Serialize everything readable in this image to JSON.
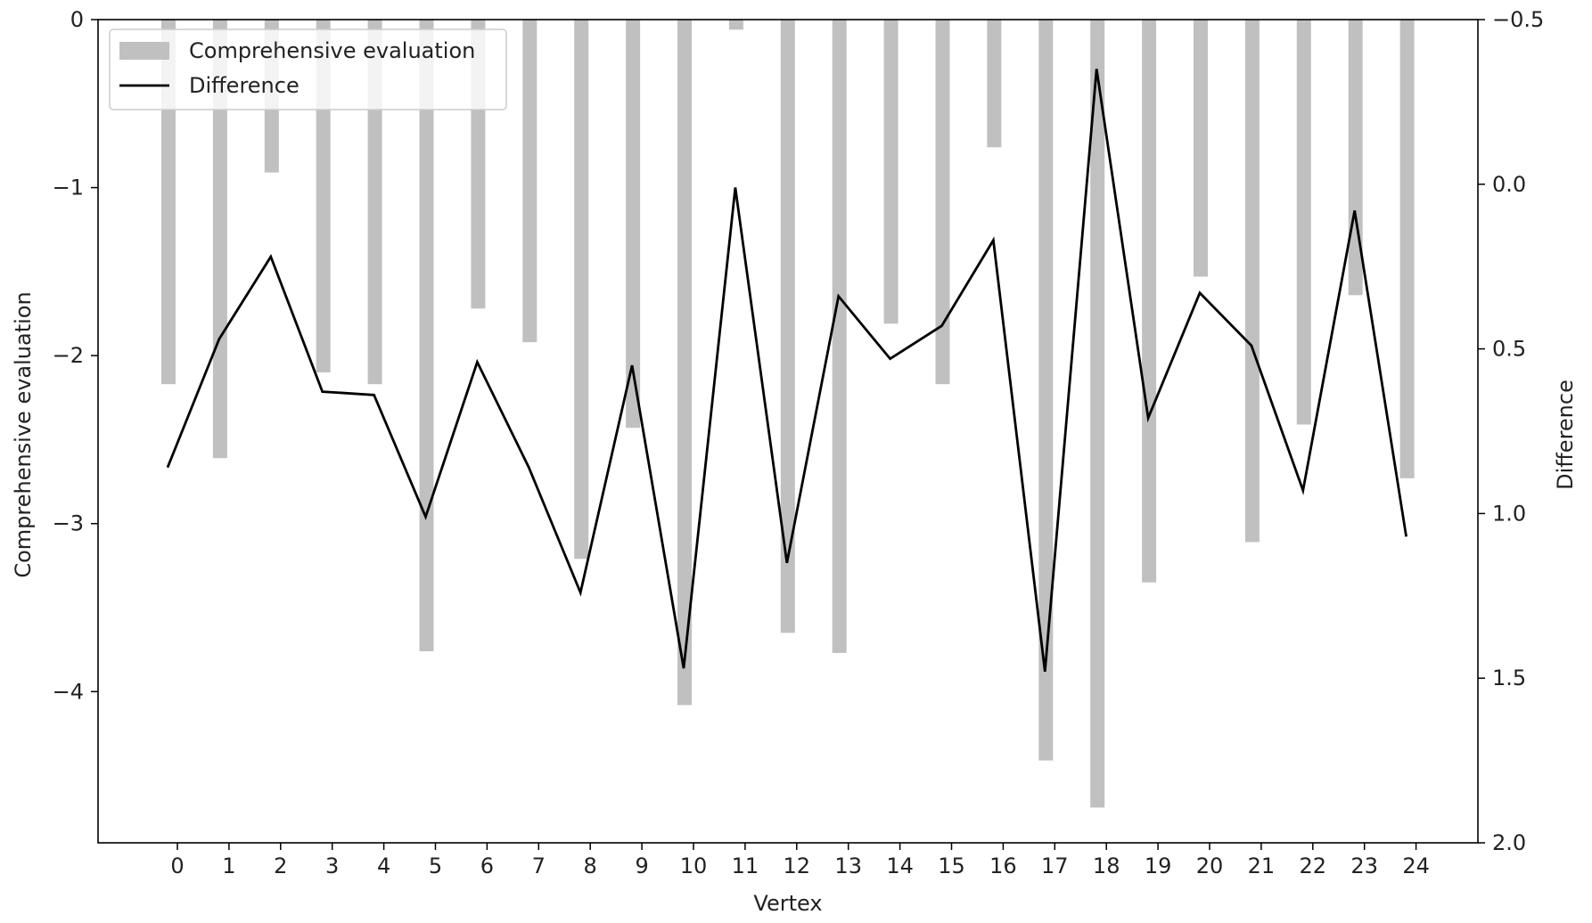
{
  "chart_data": {
    "type": "bar",
    "xlabel": "Vertex",
    "categories": [
      "0",
      "1",
      "2",
      "3",
      "4",
      "5",
      "6",
      "7",
      "8",
      "9",
      "10",
      "11",
      "12",
      "13",
      "14",
      "15",
      "16",
      "17",
      "18",
      "19",
      "20",
      "21",
      "22",
      "23",
      "24"
    ],
    "legend_position": "top-left",
    "grid": false,
    "series": [
      {
        "name": "Comprehensive evaluation",
        "type": "bar",
        "axis": "left",
        "color": "#c0c0c0",
        "values": [
          -2.17,
          -2.61,
          -0.91,
          -2.1,
          -2.17,
          -3.76,
          -1.72,
          -1.92,
          -3.21,
          -2.43,
          -4.08,
          -0.06,
          -3.65,
          -3.77,
          -1.81,
          -2.17,
          -0.76,
          -4.41,
          -4.69,
          -3.35,
          -1.53,
          -3.11,
          -2.41,
          -1.64,
          -2.73
        ]
      },
      {
        "name": "Difference",
        "type": "line",
        "axis": "right",
        "color": "#000000",
        "values": [
          0.86,
          0.47,
          0.22,
          0.63,
          0.64,
          1.01,
          0.54,
          0.86,
          1.24,
          0.55,
          1.47,
          0.01,
          1.15,
          0.34,
          0.53,
          0.43,
          0.17,
          1.48,
          -0.35,
          0.71,
          0.33,
          0.49,
          0.93,
          0.08,
          1.07
        ]
      }
    ],
    "left_axis": {
      "label": "Comprehensive evaluation",
      "range": [
        -4.9,
        0
      ],
      "ticks": [
        0,
        -1,
        -2,
        -3,
        -4
      ],
      "tick_labels": [
        "0",
        "−1",
        "−2",
        "−3",
        "−4"
      ]
    },
    "right_axis": {
      "label": "Difference",
      "range": [
        -0.5,
        2.0
      ],
      "inverted": true,
      "ticks": [
        -0.5,
        0.0,
        0.5,
        1.0,
        1.5,
        2.0
      ],
      "tick_labels": [
        "−0.5",
        "0.0",
        "0.5",
        "1.0",
        "1.5",
        "2.0"
      ]
    }
  }
}
